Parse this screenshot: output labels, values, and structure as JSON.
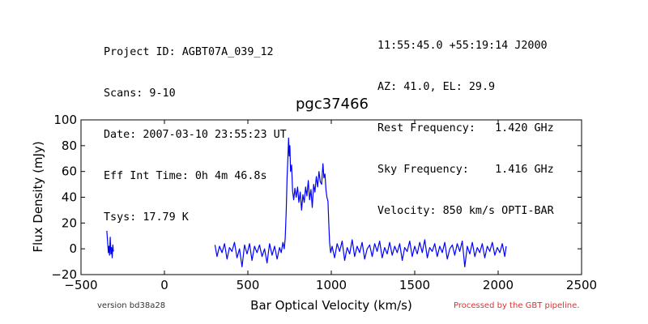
{
  "header": {
    "left_lines": [
      "Project ID: AGBT07A_039_12",
      "Scans: 9-10",
      "Date: 2007-03-10 23:55:23 UT",
      "Eff Int Time: 0h 4m 46.8s",
      "Tsys: 17.79 K"
    ],
    "right_lines": [
      "11:55:45.0 +55:19:14 J2000",
      "AZ: 41.0, EL: 29.9",
      "Rest Frequency:   1.420 GHz",
      "Sky Frequency:    1.416 GHz",
      "Velocity: 850 km/s OPTI-BAR"
    ]
  },
  "footer": {
    "version": "version bd38a28",
    "pipeline": "Processed by the GBT pipeline.",
    "pipeline_color": "#e03030"
  },
  "chart_data": {
    "type": "line",
    "title": "pgc37466",
    "xlabel": "Bar Optical Velocity (km/s)",
    "ylabel": "Flux Density (mJy)",
    "xlim": [
      -500,
      2500
    ],
    "ylim": [
      -20,
      100
    ],
    "xticks": [
      -500,
      0,
      500,
      1000,
      1500,
      2000,
      2500
    ],
    "xtick_labels": [
      "−500",
      "0",
      "500",
      "1000",
      "1500",
      "2000",
      "2500"
    ],
    "yticks": [
      -20,
      0,
      20,
      40,
      60,
      80,
      100
    ],
    "ytick_labels": [
      "−20",
      "0",
      "20",
      "40",
      "60",
      "80",
      "100"
    ],
    "grid": false,
    "line_color": "#0000ff",
    "series": [
      {
        "segments": [
          [
            [
              -345,
              14
            ],
            [
              -340,
              4
            ],
            [
              -336,
              -3
            ],
            [
              -333,
              2
            ],
            [
              -329,
              -5
            ],
            [
              -325,
              9
            ],
            [
              -321,
              -4
            ],
            [
              -317,
              1
            ],
            [
              -313,
              -7
            ],
            [
              -309,
              3
            ],
            [
              -306,
              -2
            ]
          ],
          [
            [
              303,
              3
            ],
            [
              315,
              -6
            ],
            [
              330,
              2
            ],
            [
              345,
              -3
            ],
            [
              360,
              4
            ],
            [
              375,
              -8
            ],
            [
              390,
              1
            ],
            [
              405,
              -2
            ],
            [
              420,
              5
            ],
            [
              435,
              -7
            ],
            [
              450,
              0
            ],
            [
              465,
              -14
            ],
            [
              480,
              3
            ],
            [
              495,
              -4
            ],
            [
              510,
              4
            ],
            [
              525,
              -9
            ],
            [
              540,
              2
            ],
            [
              555,
              -3
            ],
            [
              570,
              3
            ],
            [
              585,
              -6
            ],
            [
              600,
              0
            ],
            [
              615,
              -11
            ],
            [
              630,
              4
            ],
            [
              645,
              -5
            ],
            [
              660,
              2
            ],
            [
              675,
              -8
            ],
            [
              690,
              1
            ],
            [
              700,
              -3
            ],
            [
              710,
              5
            ],
            [
              718,
              0
            ],
            [
              724,
              8
            ],
            [
              730,
              30
            ],
            [
              735,
              55
            ],
            [
              740,
              70
            ],
            [
              744,
              86
            ],
            [
              748,
              72
            ],
            [
              752,
              80
            ],
            [
              756,
              60
            ],
            [
              762,
              65
            ],
            [
              768,
              45
            ],
            [
              775,
              38
            ],
            [
              782,
              47
            ],
            [
              790,
              40
            ],
            [
              798,
              48
            ],
            [
              806,
              36
            ],
            [
              814,
              44
            ],
            [
              822,
              30
            ],
            [
              830,
              42
            ],
            [
              838,
              36
            ],
            [
              846,
              48
            ],
            [
              854,
              41
            ],
            [
              862,
              53
            ],
            [
              870,
              38
            ],
            [
              878,
              46
            ],
            [
              886,
              32
            ],
            [
              894,
              50
            ],
            [
              902,
              44
            ],
            [
              910,
              56
            ],
            [
              918,
              48
            ],
            [
              926,
              60
            ],
            [
              934,
              52
            ],
            [
              942,
              50
            ],
            [
              950,
              66
            ],
            [
              956,
              55
            ],
            [
              962,
              58
            ],
            [
              968,
              46
            ],
            [
              974,
              40
            ],
            [
              980,
              37
            ],
            [
              985,
              20
            ],
            [
              990,
              5
            ],
            [
              996,
              -3
            ],
            [
              1005,
              2
            ],
            [
              1020,
              -7
            ],
            [
              1035,
              4
            ],
            [
              1050,
              -2
            ],
            [
              1065,
              6
            ],
            [
              1080,
              -9
            ],
            [
              1095,
              1
            ],
            [
              1110,
              -4
            ],
            [
              1125,
              7
            ],
            [
              1140,
              -6
            ],
            [
              1155,
              2
            ],
            [
              1170,
              -3
            ],
            [
              1185,
              5
            ],
            [
              1200,
              -8
            ],
            [
              1215,
              0
            ],
            [
              1230,
              3
            ],
            [
              1245,
              -6
            ],
            [
              1260,
              4
            ],
            [
              1275,
              -2
            ],
            [
              1290,
              6
            ],
            [
              1305,
              -7
            ],
            [
              1320,
              1
            ],
            [
              1335,
              -4
            ],
            [
              1350,
              5
            ],
            [
              1365,
              -5
            ],
            [
              1380,
              2
            ],
            [
              1395,
              -3
            ],
            [
              1410,
              4
            ],
            [
              1425,
              -9
            ],
            [
              1440,
              1
            ],
            [
              1455,
              -2
            ],
            [
              1470,
              6
            ],
            [
              1485,
              -6
            ],
            [
              1500,
              2
            ],
            [
              1515,
              -4
            ],
            [
              1530,
              5
            ],
            [
              1545,
              -3
            ],
            [
              1560,
              7
            ],
            [
              1575,
              -7
            ],
            [
              1590,
              1
            ],
            [
              1605,
              -2
            ],
            [
              1620,
              4
            ],
            [
              1635,
              -6
            ],
            [
              1650,
              2
            ],
            [
              1665,
              -3
            ],
            [
              1680,
              5
            ],
            [
              1695,
              -8
            ],
            [
              1710,
              0
            ],
            [
              1725,
              3
            ],
            [
              1740,
              -5
            ],
            [
              1755,
              4
            ],
            [
              1770,
              -2
            ],
            [
              1785,
              6
            ],
            [
              1800,
              -14
            ],
            [
              1815,
              2
            ],
            [
              1830,
              -4
            ],
            [
              1845,
              5
            ],
            [
              1860,
              -6
            ],
            [
              1875,
              1
            ],
            [
              1890,
              -3
            ],
            [
              1905,
              4
            ],
            [
              1920,
              -7
            ],
            [
              1935,
              2
            ],
            [
              1950,
              -2
            ],
            [
              1965,
              5
            ],
            [
              1980,
              -5
            ],
            [
              1995,
              1
            ],
            [
              2010,
              -3
            ],
            [
              2025,
              4
            ],
            [
              2040,
              -6
            ],
            [
              2048,
              2
            ]
          ]
        ]
      }
    ]
  }
}
